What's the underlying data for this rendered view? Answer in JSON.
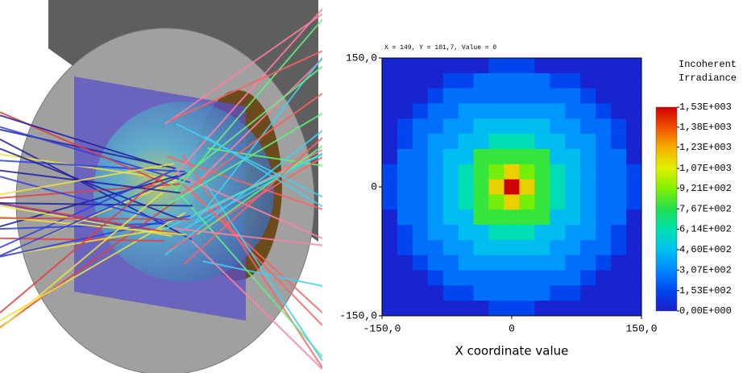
{
  "chart_data": {
    "type": "heatmap",
    "annotation": "X = 149, Y = 101,7, Value = 0",
    "xlabel": "X coordinate value",
    "colorbar_title": "Incoherent Irradiance",
    "xlim": [
      -150,
      150
    ],
    "ylim": [
      -150,
      150
    ],
    "xticks": [
      {
        "value": -150,
        "label": "-150,0"
      },
      0,
      {
        "value": 150,
        "label": "150,0"
      }
    ],
    "yticks": [
      {
        "value": -150,
        "label": "-150,0"
      },
      0,
      {
        "value": 150,
        "label": "150,0"
      }
    ],
    "clim": [
      0,
      1530
    ],
    "cticks": [
      {
        "value": 0,
        "label": "0,00E+000"
      },
      {
        "value": 153,
        "label": "1,53E+002"
      },
      {
        "value": 307,
        "label": "3,07E+002"
      },
      {
        "value": 460,
        "label": "4,60E+002"
      },
      {
        "value": 614,
        "label": "6,14E+002"
      },
      {
        "value": 767,
        "label": "7,67E+002"
      },
      {
        "value": 921,
        "label": "9,21E+002"
      },
      {
        "value": 1070,
        "label": "1,07E+003"
      },
      {
        "value": 1230,
        "label": "1,23E+003"
      },
      {
        "value": 1380,
        "label": "1,38E+003"
      },
      {
        "value": 1530,
        "label": "1,53E+003"
      }
    ],
    "colors": [
      "#1c1cc8",
      "#0046f0",
      "#0088ff",
      "#00c0f0",
      "#00e0b0",
      "#20e050",
      "#80f000",
      "#e0f000",
      "#f8b000",
      "#f05000",
      "#d00000"
    ],
    "z": [
      [
        30,
        30,
        30,
        30,
        30,
        30,
        30,
        150,
        150,
        150,
        30,
        30,
        30,
        30,
        30,
        30,
        30
      ],
      [
        30,
        30,
        30,
        30,
        150,
        150,
        250,
        250,
        250,
        250,
        250,
        150,
        150,
        30,
        30,
        30,
        30
      ],
      [
        30,
        30,
        30,
        150,
        250,
        250,
        250,
        250,
        250,
        250,
        250,
        250,
        250,
        150,
        30,
        30,
        30
      ],
      [
        30,
        30,
        150,
        250,
        250,
        350,
        350,
        350,
        350,
        350,
        350,
        350,
        250,
        250,
        150,
        30,
        30
      ],
      [
        30,
        150,
        250,
        250,
        350,
        350,
        450,
        450,
        450,
        450,
        450,
        350,
        350,
        250,
        250,
        150,
        30
      ],
      [
        30,
        150,
        250,
        350,
        350,
        450,
        450,
        600,
        600,
        600,
        450,
        450,
        350,
        350,
        250,
        150,
        30
      ],
      [
        30,
        250,
        250,
        350,
        450,
        450,
        800,
        800,
        800,
        800,
        800,
        450,
        450,
        350,
        250,
        250,
        30
      ],
      [
        150,
        250,
        250,
        350,
        450,
        600,
        800,
        900,
        1150,
        900,
        800,
        600,
        450,
        350,
        250,
        250,
        150
      ],
      [
        150,
        250,
        250,
        350,
        450,
        600,
        800,
        1150,
        1530,
        1150,
        800,
        600,
        450,
        350,
        250,
        250,
        150
      ],
      [
        150,
        250,
        250,
        350,
        450,
        600,
        800,
        900,
        1150,
        900,
        800,
        600,
        450,
        350,
        250,
        250,
        150
      ],
      [
        30,
        250,
        250,
        350,
        450,
        450,
        800,
        800,
        800,
        800,
        800,
        450,
        450,
        350,
        250,
        250,
        30
      ],
      [
        30,
        150,
        250,
        350,
        350,
        450,
        450,
        600,
        600,
        600,
        450,
        450,
        350,
        350,
        250,
        150,
        30
      ],
      [
        30,
        150,
        250,
        250,
        350,
        350,
        450,
        450,
        450,
        450,
        450,
        350,
        350,
        250,
        250,
        150,
        30
      ],
      [
        30,
        30,
        150,
        250,
        250,
        350,
        350,
        350,
        350,
        350,
        350,
        350,
        250,
        250,
        150,
        30,
        30
      ],
      [
        30,
        30,
        30,
        150,
        250,
        250,
        250,
        250,
        250,
        250,
        250,
        250,
        250,
        150,
        30,
        30,
        30
      ],
      [
        30,
        30,
        30,
        30,
        150,
        150,
        250,
        250,
        250,
        250,
        250,
        150,
        150,
        30,
        30,
        30,
        30
      ],
      [
        30,
        30,
        30,
        30,
        30,
        30,
        30,
        150,
        150,
        150,
        30,
        30,
        30,
        30,
        30,
        30,
        30
      ]
    ]
  }
}
